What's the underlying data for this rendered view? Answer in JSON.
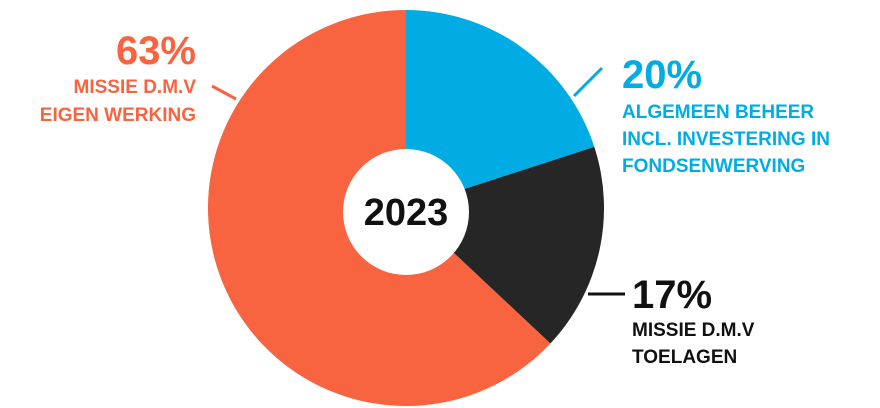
{
  "chart_data": {
    "type": "pie",
    "title": "2023",
    "slices": [
      {
        "label": [
          "ALGEMEEN BEHEER",
          "INCL. INVESTERING IN",
          "FONDSENWERVING"
        ],
        "percent_label": "20%",
        "value": 20,
        "color": "#00ace3"
      },
      {
        "label": [
          "MISSIE D.M.V",
          "TOELAGEN"
        ],
        "percent_label": "17%",
        "value": 17,
        "color": "#262626"
      },
      {
        "label": [
          "MISSIE D.M.V",
          "EIGEN WERKING"
        ],
        "percent_label": "63%",
        "value": 63,
        "color": "#f86340"
      }
    ]
  }
}
